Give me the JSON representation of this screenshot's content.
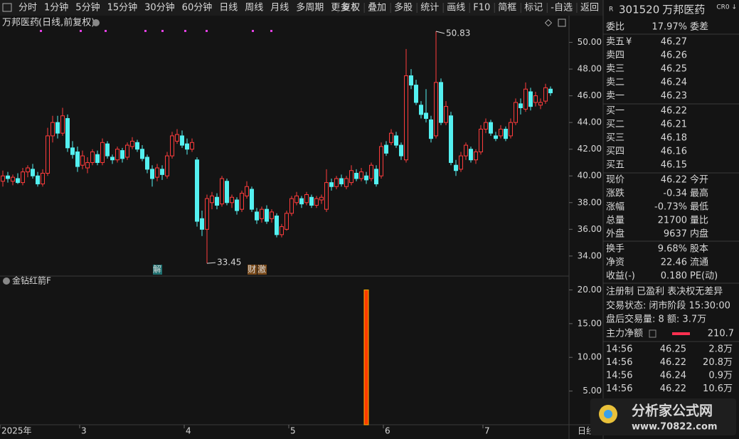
{
  "toolbar": {
    "periods": [
      "分时",
      "1分钟",
      "5分钟",
      "15分钟",
      "30分钟",
      "60分钟",
      "日线",
      "周线",
      "月线",
      "多周期",
      "更多 〉"
    ],
    "active": 6,
    "tools": [
      "复权",
      "叠加",
      "多股",
      "统计",
      "画线",
      "F10",
      "简框",
      "标记",
      "-自选",
      "返回"
    ]
  },
  "chart": {
    "title": "万邦医药",
    "subtitle": "(日线,前复权)",
    "ylim": [
      32.5,
      52
    ],
    "yticks": [
      {
        "value": 34,
        "label": "34.00"
      },
      {
        "value": 36,
        "label": "36.00"
      },
      {
        "value": 38,
        "label": "38.00"
      },
      {
        "value": 40,
        "label": "40.00"
      },
      {
        "value": 42,
        "label": "42.00"
      },
      {
        "value": 44,
        "label": "44.00"
      },
      {
        "value": 46,
        "label": "46.00"
      },
      {
        "value": 48,
        "label": "48.00"
      },
      {
        "value": 50,
        "label": "50.00"
      }
    ],
    "high_note": 50.83,
    "low_note": 33.45,
    "markers": [
      {
        "label": "解",
        "index": 31
      },
      {
        "label": "财",
        "index": 50
      },
      {
        "label": "激",
        "index": 52
      }
    ],
    "x_labels": [
      {
        "label": "2025年",
        "index": 0
      },
      {
        "label": "3",
        "index": 16
      },
      {
        "label": "4",
        "index": 37
      },
      {
        "label": "5",
        "index": 58
      },
      {
        "label": "6",
        "index": 77
      },
      {
        "label": "7",
        "index": 97
      }
    ],
    "period_label": "日线",
    "candles": [
      [
        39.6,
        40.4,
        39.2,
        40.0
      ],
      [
        40.0,
        40.3,
        39.5,
        39.8
      ],
      [
        39.6,
        40.1,
        39.3,
        39.9
      ],
      [
        39.8,
        40.2,
        39.4,
        39.5
      ],
      [
        39.5,
        40.6,
        39.3,
        40.3
      ],
      [
        40.3,
        40.8,
        39.9,
        40.6
      ],
      [
        40.5,
        40.9,
        39.8,
        40.0
      ],
      [
        40.0,
        40.3,
        39.2,
        39.4
      ],
      [
        39.4,
        40.5,
        39.2,
        40.2
      ],
      [
        40.2,
        43.6,
        40.0,
        43.0
      ],
      [
        43.0,
        44.5,
        42.5,
        44.0
      ],
      [
        44.0,
        44.5,
        42.8,
        43.2
      ],
      [
        43.2,
        45.1,
        43.0,
        44.5
      ],
      [
        44.3,
        44.6,
        41.8,
        42.1
      ],
      [
        42.1,
        42.6,
        41.3,
        41.6
      ],
      [
        41.8,
        42.2,
        40.3,
        40.7
      ],
      [
        40.8,
        41.9,
        40.5,
        41.5
      ],
      [
        40.6,
        41.4,
        40.2,
        41.0
      ],
      [
        41.0,
        42.0,
        40.8,
        41.8
      ],
      [
        41.6,
        41.9,
        40.8,
        41.0
      ],
      [
        41.0,
        42.8,
        40.8,
        42.5
      ],
      [
        42.4,
        42.6,
        41.3,
        41.5
      ],
      [
        41.4,
        41.6,
        40.9,
        41.2
      ],
      [
        41.2,
        42.2,
        41.0,
        42.0
      ],
      [
        41.9,
        42.1,
        41.0,
        41.3
      ],
      [
        41.4,
        42.5,
        41.2,
        42.3
      ],
      [
        42.2,
        42.9,
        42.0,
        42.6
      ],
      [
        42.5,
        42.7,
        41.8,
        42.0
      ],
      [
        42.0,
        42.3,
        41.1,
        41.3
      ],
      [
        41.4,
        41.6,
        40.2,
        40.5
      ],
      [
        40.5,
        40.8,
        39.2,
        39.8
      ],
      [
        39.9,
        40.9,
        39.6,
        40.6
      ],
      [
        40.5,
        40.8,
        39.7,
        40.1
      ],
      [
        40.0,
        41.8,
        39.8,
        41.5
      ],
      [
        41.5,
        43.3,
        41.3,
        43.0
      ],
      [
        42.6,
        43.5,
        42.4,
        43.1
      ],
      [
        43.0,
        43.4,
        42.1,
        42.3
      ],
      [
        42.4,
        42.8,
        41.6,
        42.0
      ],
      [
        42.0,
        42.8,
        41.8,
        42.5
      ],
      [
        41.2,
        41.4,
        36.2,
        36.6
      ],
      [
        36.8,
        37.4,
        35.5,
        36.0
      ],
      [
        36.0,
        38.6,
        33.45,
        38.3
      ],
      [
        38.0,
        38.8,
        37.5,
        38.5
      ],
      [
        38.4,
        38.7,
        37.5,
        37.8
      ],
      [
        37.9,
        40.0,
        37.7,
        39.8
      ],
      [
        39.6,
        39.8,
        37.8,
        38.0
      ],
      [
        38.0,
        38.6,
        37.6,
        38.4
      ],
      [
        38.2,
        38.4,
        37.1,
        37.4
      ],
      [
        37.5,
        38.9,
        37.3,
        38.7
      ],
      [
        38.5,
        39.6,
        38.3,
        39.2
      ],
      [
        39.0,
        39.2,
        37.3,
        37.5
      ],
      [
        37.3,
        37.6,
        36.4,
        36.7
      ],
      [
        36.8,
        37.7,
        36.5,
        37.5
      ],
      [
        37.5,
        37.8,
        36.4,
        36.6
      ],
      [
        36.8,
        37.5,
        36.5,
        37.3
      ],
      [
        37.0,
        37.2,
        35.4,
        35.6
      ],
      [
        35.6,
        36.4,
        35.4,
        36.2
      ],
      [
        36.0,
        37.4,
        35.9,
        37.2
      ],
      [
        37.2,
        38.5,
        37.0,
        38.3
      ],
      [
        38.0,
        38.8,
        37.8,
        38.5
      ],
      [
        38.3,
        38.5,
        37.6,
        37.9
      ],
      [
        38.0,
        38.8,
        37.8,
        38.6
      ],
      [
        38.4,
        38.6,
        37.6,
        37.8
      ],
      [
        37.8,
        38.5,
        37.6,
        38.3
      ],
      [
        38.2,
        38.6,
        37.9,
        38.4
      ],
      [
        37.5,
        40.5,
        37.3,
        39.5
      ],
      [
        39.5,
        39.8,
        38.9,
        39.2
      ],
      [
        39.2,
        40.0,
        39.0,
        39.8
      ],
      [
        39.8,
        40.1,
        39.2,
        39.4
      ],
      [
        39.2,
        40.0,
        39.0,
        39.8
      ],
      [
        39.5,
        40.8,
        39.3,
        40.4
      ],
      [
        40.2,
        40.5,
        39.6,
        39.8
      ],
      [
        39.8,
        40.6,
        39.6,
        40.3
      ],
      [
        40.0,
        40.3,
        39.4,
        39.7
      ],
      [
        39.8,
        41.0,
        39.6,
        40.8
      ],
      [
        40.5,
        40.8,
        39.2,
        39.4
      ],
      [
        40.0,
        42.5,
        39.8,
        42.2
      ],
      [
        42.3,
        42.6,
        41.5,
        41.7
      ],
      [
        42.5,
        43.5,
        42.3,
        43.2
      ],
      [
        43.0,
        43.3,
        42.1,
        42.3
      ],
      [
        42.3,
        42.5,
        41.2,
        41.5
      ],
      [
        41.2,
        49.5,
        41.0,
        47.5
      ],
      [
        47.5,
        48.0,
        46.5,
        46.8
      ],
      [
        46.8,
        47.2,
        45.3,
        45.5
      ],
      [
        45.3,
        45.6,
        44.3,
        44.6
      ],
      [
        44.7,
        46.5,
        44.0,
        44.3
      ],
      [
        44.2,
        44.5,
        42.5,
        42.8
      ],
      [
        43.0,
        50.83,
        42.8,
        47.0
      ],
      [
        47.0,
        47.3,
        43.8,
        44.0
      ],
      [
        44.0,
        45.6,
        43.8,
        45.2
      ],
      [
        44.5,
        44.8,
        40.8,
        41.0
      ],
      [
        40.8,
        41.2,
        40.0,
        40.4
      ],
      [
        40.5,
        41.8,
        40.3,
        41.5
      ],
      [
        41.5,
        42.5,
        41.2,
        42.3
      ],
      [
        42.0,
        42.2,
        41.0,
        41.2
      ],
      [
        41.2,
        42.0,
        40.9,
        41.8
      ],
      [
        41.8,
        43.8,
        41.6,
        43.5
      ],
      [
        43.5,
        44.3,
        43.2,
        44.0
      ],
      [
        44.0,
        44.2,
        43.0,
        43.2
      ],
      [
        43.0,
        43.3,
        42.6,
        42.8
      ],
      [
        43.0,
        43.8,
        42.8,
        43.5
      ],
      [
        43.5,
        43.7,
        42.6,
        42.8
      ],
      [
        43.0,
        44.3,
        42.8,
        44.0
      ],
      [
        44.0,
        45.8,
        43.8,
        45.5
      ],
      [
        45.4,
        45.8,
        44.6,
        45.1
      ],
      [
        45.0,
        47.0,
        44.8,
        46.5
      ],
      [
        46.3,
        46.6,
        44.9,
        45.2
      ],
      [
        45.5,
        46.3,
        45.2,
        46.0
      ],
      [
        45.3,
        45.8,
        45.0,
        45.5
      ],
      [
        45.6,
        46.9,
        45.4,
        46.6
      ],
      [
        46.5,
        46.7,
        46.0,
        46.22
      ]
    ]
  },
  "indicator": {
    "name": "金钻红箭F",
    "ylim": [
      0,
      21
    ],
    "yticks": [
      {
        "value": 5,
        "label": "5.00"
      },
      {
        "value": 10,
        "label": "10.00"
      },
      {
        "value": 15,
        "label": "15.00"
      },
      {
        "value": 20,
        "label": "20.00"
      }
    ],
    "bars": [
      {
        "index": 73,
        "value": 20
      }
    ]
  },
  "quote": {
    "badge": "R",
    "code": "301520",
    "name": "万邦医药",
    "corner": "CR0 ↓",
    "weibi_label": "委比",
    "weibi": "17.97%",
    "weicha_label": "委差",
    "sells": [
      {
        "label": "卖五",
        "price": 46.27
      },
      {
        "label": "卖四",
        "price": 46.26
      },
      {
        "label": "卖三",
        "price": 46.25
      },
      {
        "label": "卖二",
        "price": 46.24
      },
      {
        "label": "卖一",
        "price": 46.23
      }
    ],
    "sell_icon": "¥",
    "buys": [
      {
        "label": "买一",
        "price": 46.22
      },
      {
        "label": "买二",
        "price": 46.21
      },
      {
        "label": "买三",
        "price": 46.18
      },
      {
        "label": "买四",
        "price": 46.16
      },
      {
        "label": "买五",
        "price": 46.15
      }
    ],
    "stats": [
      [
        {
          "label": "现价",
          "value": 46.22,
          "label2": "今开",
          "color": "#3fd46a"
        },
        {
          "label": "涨跌",
          "value": -0.34,
          "label2": "最高",
          "color": "#3fd46a"
        },
        {
          "label": "涨幅",
          "value": "-0.73%",
          "label2": "最低",
          "color": "#3fd46a"
        },
        {
          "label": "总量",
          "value": 21700,
          "label2": "量比",
          "color": "#f0c040"
        },
        {
          "label": "外盘",
          "value": 9637,
          "label2": "内盘",
          "color": "#ff4d4d"
        }
      ],
      [
        {
          "label": "换手",
          "value": "9.68%",
          "label2": "股本",
          "color": "#d8d8d8"
        },
        {
          "label": "净资",
          "value": 22.46,
          "label2": "流通",
          "color": "#d8d8d8"
        },
        {
          "label": "收益(-)",
          "value": "0.180",
          "label2": "PE(动)",
          "color": "#d8d8d8"
        }
      ]
    ],
    "tags": "注册制 已盈利 表决权无差异",
    "status_label": "交易状态:",
    "status": "闭市阶段 15:30:00",
    "after_hours": "盘后交易量: 8 额: 3.7万",
    "net_label": "主力净额",
    "net": 210.7,
    "ticks": [
      {
        "time": "14:56",
        "price": 46.25,
        "volume": "2.8万"
      },
      {
        "time": "14:56",
        "price": 46.22,
        "volume": "20.8万"
      },
      {
        "time": "14:56",
        "price": 46.24,
        "volume": "0.9万"
      },
      {
        "time": "14:56",
        "price": 46.22,
        "volume": "10.6万"
      }
    ]
  },
  "watermark": {
    "name": "分析家公式网",
    "url": "www.70822.com"
  }
}
